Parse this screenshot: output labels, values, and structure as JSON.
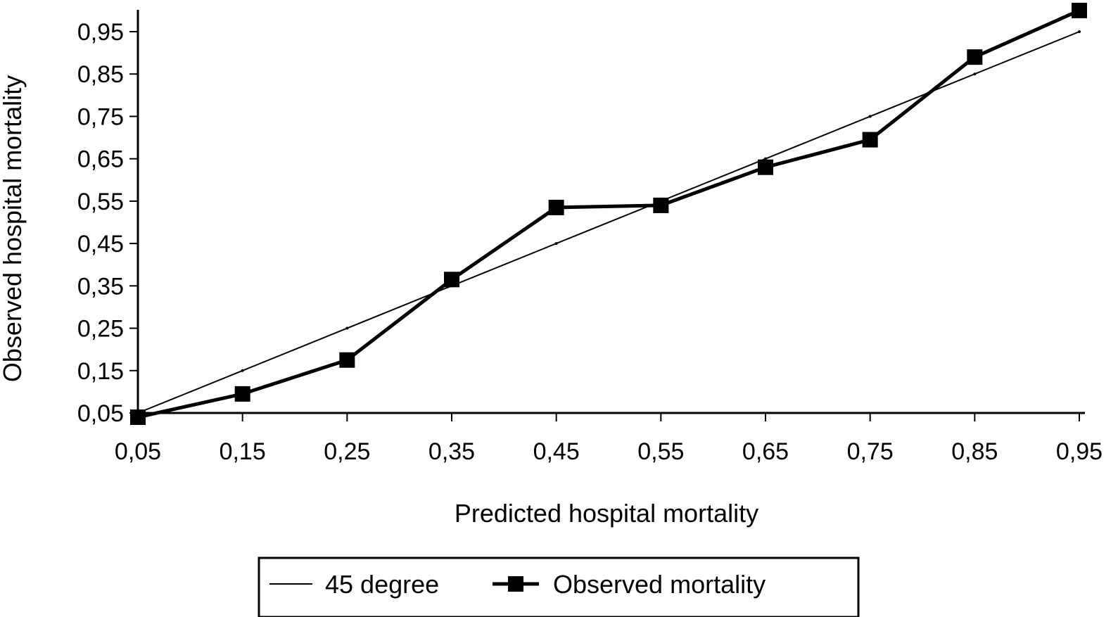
{
  "chart_data": {
    "type": "line",
    "xlabel": "Predicted hospital mortality",
    "ylabel": "Observed hospital mortality",
    "x": [
      0.05,
      0.15,
      0.25,
      0.35,
      0.45,
      0.55,
      0.65,
      0.75,
      0.85,
      0.95
    ],
    "xlim": [
      0.05,
      0.95
    ],
    "ylim": [
      0.05,
      1.0
    ],
    "x_tick_labels": [
      "0,05",
      "0,15",
      "0,25",
      "0,35",
      "0,45",
      "0,55",
      "0,65",
      "0,75",
      "0,85",
      "0,95"
    ],
    "y_tick_values": [
      0.05,
      0.15,
      0.25,
      0.35,
      0.45,
      0.55,
      0.65,
      0.75,
      0.85,
      0.95
    ],
    "y_tick_labels": [
      "0,05",
      "0,15",
      "0,25",
      "0,35",
      "0,45",
      "0,55",
      "0,65",
      "0,75",
      "0,85",
      "0,95"
    ],
    "grid": false,
    "legend_position": "bottom",
    "series": [
      {
        "name": "45 degree",
        "values": [
          0.05,
          0.15,
          0.25,
          0.35,
          0.45,
          0.55,
          0.65,
          0.75,
          0.85,
          0.95
        ],
        "color": "#000000",
        "style": "thin-line"
      },
      {
        "name": "Observed mortality",
        "values": [
          0.04,
          0.095,
          0.175,
          0.365,
          0.535,
          0.54,
          0.63,
          0.695,
          0.89,
          1.0
        ],
        "color": "#000000",
        "style": "thick-line-square-markers"
      }
    ]
  }
}
